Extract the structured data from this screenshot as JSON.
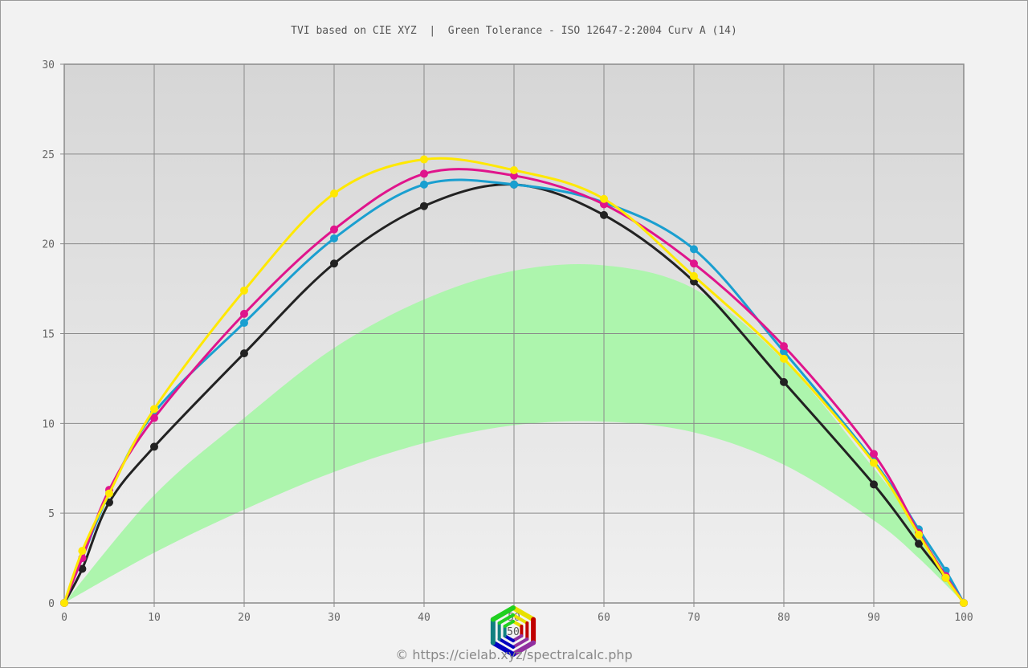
{
  "chart_data": {
    "type": "line",
    "title": "TVI based on CIE XYZ  |  Green Tolerance - ISO 12647-2:2004 Curv A (14)",
    "xlabel": "",
    "ylabel": "",
    "xlim": [
      0,
      100
    ],
    "ylim": [
      0,
      30
    ],
    "xticks": [
      "0",
      "10",
      "20",
      "30",
      "40",
      "50",
      "60",
      "70",
      "80",
      "90",
      "100"
    ],
    "yticks": [
      "0",
      "5",
      "10",
      "15",
      "20",
      "25",
      "30"
    ],
    "grid": true,
    "x": [
      0,
      2,
      5,
      10,
      20,
      30,
      40,
      50,
      60,
      70,
      80,
      90,
      95,
      98,
      100
    ],
    "series": [
      {
        "name": "black",
        "color": "#222222",
        "values": [
          0,
          1.9,
          5.6,
          8.7,
          13.9,
          18.9,
          22.1,
          23.3,
          21.6,
          17.9,
          12.3,
          6.6,
          3.3,
          1.4,
          0
        ]
      },
      {
        "name": "cyan",
        "color": "#1a9fd0",
        "values": [
          0,
          2.5,
          6.1,
          10.6,
          15.6,
          20.3,
          23.3,
          23.3,
          22.3,
          19.7,
          14.0,
          7.9,
          4.1,
          1.8,
          0
        ]
      },
      {
        "name": "magenta",
        "color": "#e0148c",
        "values": [
          0,
          2.5,
          6.3,
          10.3,
          16.1,
          20.8,
          23.9,
          23.8,
          22.2,
          18.9,
          14.3,
          8.3,
          3.9,
          1.5,
          0
        ]
      },
      {
        "name": "yellow",
        "color": "#ffe800",
        "values": [
          0,
          2.9,
          6.1,
          10.8,
          17.4,
          22.8,
          24.7,
          24.1,
          22.5,
          18.2,
          13.6,
          7.8,
          3.8,
          1.4,
          0
        ]
      }
    ],
    "tolerance_band": {
      "name": "Green Tolerance",
      "color": "#adf5ad",
      "x": [
        0,
        10,
        20,
        30,
        40,
        50,
        60,
        70,
        80,
        90,
        95,
        100
      ],
      "upper": [
        0,
        6.0,
        10.3,
        14.2,
        16.9,
        18.5,
        18.8,
        17.5,
        13.5,
        7.5,
        4.2,
        0
      ],
      "lower": [
        0,
        2.8,
        5.2,
        7.3,
        8.9,
        9.9,
        10.1,
        9.5,
        7.7,
        4.6,
        2.5,
        0
      ]
    }
  },
  "logo_text": "50",
  "credit": "© https://cielab.xyz/spectralcalc.php"
}
